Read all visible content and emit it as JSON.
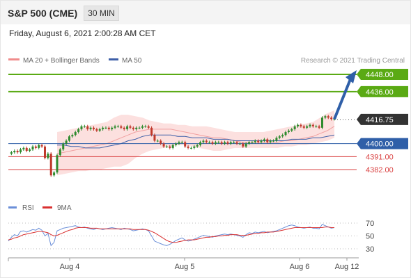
{
  "header": {
    "title": "S&P 500 (CME)",
    "timeframe": "30 MIN"
  },
  "datetime": "Friday, August 6, 2021 2:00:28 AM CET",
  "legend": {
    "bb": "MA 20 + Bollinger Bands",
    "ma50": "MA 50",
    "credit": "Research © 2021 Trading Central"
  },
  "rsi_legend": {
    "rsi": "RSI",
    "ma9": "9MA"
  },
  "colors": {
    "green": "#5aaa14",
    "blue": "#2f5fa8",
    "red": "#d94040",
    "candle_up": "#2e8b2e",
    "candle_down": "#c0392b",
    "bb_fill": "#fbd6d4",
    "ma50": "#3d5fa8",
    "rsi": "#6b8fd8",
    "rsi_ma": "#d93030",
    "current": "#333333"
  },
  "chart_data": {
    "type": "line",
    "price_axis": {
      "min": 4372,
      "max": 4452
    },
    "x_ticks": [
      "Aug 4",
      "Aug 5",
      "Aug 6",
      "Aug 12"
    ],
    "levels": [
      {
        "value": 4448.0,
        "label": "4448.00",
        "style": "green"
      },
      {
        "value": 4436.0,
        "label": "4436.00",
        "style": "green"
      },
      {
        "value": 4416.75,
        "label": "4416.75",
        "style": "current"
      },
      {
        "value": 4400.0,
        "label": "4400.00",
        "style": "blue"
      },
      {
        "value": 4391.0,
        "label": "4391.00",
        "style": "red"
      },
      {
        "value": 4382.0,
        "label": "4382.00",
        "style": "red"
      }
    ],
    "close": [
      4393,
      4394,
      4395,
      4394,
      4396,
      4397,
      4395,
      4396,
      4398,
      4397,
      4399,
      4398,
      4390,
      4393,
      4378,
      4380,
      4392,
      4396,
      4400,
      4402,
      4405,
      4406,
      4408,
      4410,
      4412,
      4412,
      4410,
      4411,
      4410,
      4409,
      4410,
      4411,
      4411,
      4410,
      4411,
      4412,
      4412,
      4411,
      4410,
      4412,
      4411,
      4410,
      4411,
      4411,
      4412,
      4412,
      4411,
      4406,
      4402,
      4402,
      4400,
      4398,
      4398,
      4397,
      4399,
      4400,
      4401,
      4401,
      4398,
      4397,
      4397,
      4398,
      4399,
      4401,
      4402,
      4401,
      4401,
      4400,
      4401,
      4401,
      4400,
      4401,
      4400,
      4401,
      4401,
      4400,
      4400,
      4398,
      4400,
      4401,
      4401,
      4402,
      4401,
      4402,
      4403,
      4401,
      4402,
      4402,
      4404,
      4405,
      4406,
      4408,
      4409,
      4410,
      4412,
      4413,
      4412,
      4411,
      4412,
      4413,
      4412,
      4412,
      4411,
      4418,
      4419,
      4418,
      4417,
      4417
    ],
    "bb_upper": [
      4408,
      4409,
      4410,
      4411,
      4412,
      4413,
      4414,
      4415,
      4418,
      4420,
      4420,
      4419,
      4418,
      4416,
      4415,
      4414,
      4414,
      4413,
      4413,
      4412,
      4412,
      4412,
      4411,
      4410,
      4409,
      4408,
      4408,
      4408,
      4408,
      4408,
      4409,
      4410,
      4411,
      4412,
      4413,
      4414,
      4415,
      4418,
      4421,
      4423
    ],
    "bb_lower": [
      4378,
      4379,
      4380,
      4381,
      4381,
      4382,
      4382,
      4383,
      4384,
      4384,
      4386,
      4390,
      4393,
      4395,
      4396,
      4397,
      4398,
      4399,
      4399,
      4398,
      4397,
      4396,
      4395,
      4395,
      4396,
      4397,
      4397,
      4397,
      4397,
      4397,
      4397,
      4397,
      4398,
      4398,
      4399,
      4399,
      4400,
      4401,
      4402,
      4404
    ],
    "ma20": [
      4393,
      4394,
      4395,
      4396,
      4397,
      4398,
      4399,
      4400,
      4402,
      4404,
      4406,
      4408,
      4409,
      4410,
      4410,
      4410,
      4410,
      4409,
      4408,
      4407,
      4406,
      4405,
      4404,
      4404,
      4403,
      4402,
      4401,
      4401,
      4401,
      4401,
      4401,
      4401,
      4402,
      4402,
      4403,
      4404,
      4405,
      4407,
      4409,
      4412
    ],
    "ma50": [
      4399,
      4399,
      4398,
      4398,
      4397,
      4397,
      4397,
      4398,
      4399,
      4400,
      4402,
      4403,
      4405,
      4406,
      4406,
      4406,
      4406,
      4405,
      4405,
      4404,
      4404,
      4404,
      4403,
      4403,
      4403,
      4402,
      4402,
      4402,
      4402,
      4402,
      4402,
      4402,
      4402,
      4403,
      4403,
      4403,
      4404,
      4404,
      4405,
      4406
    ],
    "rsi_axis": {
      "ticks": [
        70,
        50,
        30
      ],
      "min": 20,
      "max": 80
    },
    "rsi": [
      42,
      48,
      52,
      50,
      57,
      58,
      56,
      58,
      60,
      59,
      62,
      59,
      50,
      54,
      35,
      40,
      58,
      60,
      62,
      63,
      64,
      65,
      66,
      64,
      63,
      64,
      62,
      61,
      60,
      62,
      61,
      60,
      61,
      62,
      63,
      62,
      61,
      60,
      62,
      61,
      60,
      58,
      59,
      60,
      61,
      60,
      58,
      50,
      42,
      40,
      38,
      36,
      35,
      37,
      40,
      43,
      45,
      47,
      44,
      42,
      43,
      45,
      47,
      49,
      51,
      50,
      49,
      48,
      50,
      51,
      52,
      53,
      52,
      53,
      52,
      51,
      50,
      48,
      52,
      55,
      54,
      56,
      55,
      56,
      57,
      55,
      56,
      57,
      58,
      60,
      62,
      64,
      66,
      67,
      66,
      64,
      63,
      62,
      63,
      64,
      62,
      62,
      61,
      68,
      66,
      64,
      62,
      63
    ],
    "rsi_ma": [
      44,
      45,
      47,
      48,
      50,
      52,
      53,
      54,
      55,
      56,
      57,
      57,
      56,
      55,
      52,
      50,
      51,
      53,
      55,
      57,
      59,
      60,
      62,
      63,
      63,
      63,
      63,
      62,
      62,
      62,
      61,
      61,
      61,
      61,
      61,
      61,
      61,
      61,
      61,
      61,
      61,
      60,
      60,
      60,
      60,
      60,
      59,
      57,
      55,
      52,
      49,
      46,
      43,
      41,
      40,
      40,
      41,
      42,
      43,
      44,
      44,
      44,
      45,
      46,
      47,
      48,
      48,
      49,
      49,
      50,
      50,
      51,
      51,
      52,
      52,
      52,
      51,
      51,
      51,
      52,
      53,
      54,
      54,
      55,
      55,
      56,
      56,
      56,
      57,
      58,
      59,
      60,
      61,
      62,
      63,
      63,
      63,
      63,
      63,
      63,
      63,
      63,
      63,
      63,
      64,
      64,
      63,
      63
    ]
  }
}
